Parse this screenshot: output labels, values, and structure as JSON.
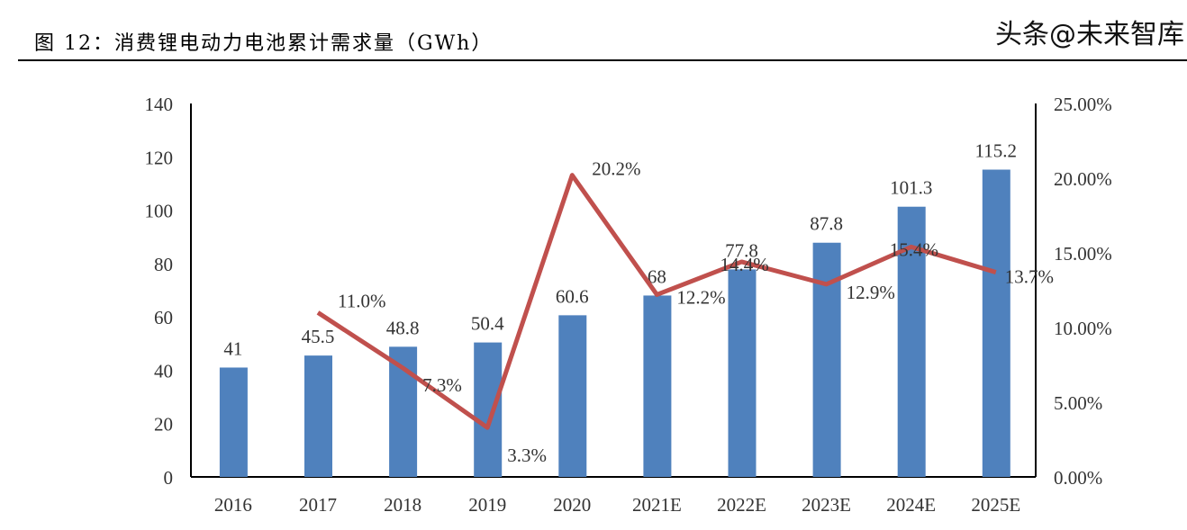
{
  "title": "图 12：消费锂电动力电池累计需求量（GWh）",
  "watermark": "头条@未来智库",
  "chart_data": {
    "type": "bar+line",
    "categories": [
      "2016",
      "2017",
      "2018",
      "2019",
      "2020",
      "2021E",
      "2022E",
      "2023E",
      "2024E",
      "2025E"
    ],
    "series": [
      {
        "type": "bar",
        "axis": "left",
        "color": "#4F81BD",
        "values": [
          41,
          45.5,
          48.8,
          50.4,
          60.6,
          68,
          77.8,
          87.8,
          101.3,
          115.2
        ],
        "labels": [
          "41",
          "45.5",
          "48.8",
          "50.4",
          "60.6",
          "68",
          "77.8",
          "87.8",
          "101.3",
          "115.2"
        ]
      },
      {
        "type": "line",
        "axis": "right",
        "color": "#C0504D",
        "values": [
          null,
          11.0,
          7.3,
          3.3,
          20.2,
          12.2,
          14.4,
          12.9,
          15.4,
          13.7
        ],
        "labels": [
          "",
          "11.0%",
          "7.3%",
          "3.3%",
          "20.2%",
          "12.2%",
          "14.4%",
          "12.9%",
          "15.4%",
          "13.7%"
        ]
      }
    ],
    "y_left": {
      "range": [
        0,
        140
      ],
      "ticks": [
        "0",
        "20",
        "40",
        "60",
        "80",
        "100",
        "120",
        "140"
      ]
    },
    "y_right": {
      "range": [
        0,
        25
      ],
      "ticks": [
        "0.00%",
        "5.00%",
        "10.00%",
        "15.00%",
        "20.00%",
        "25.00%"
      ]
    },
    "grid": false,
    "legend": "none"
  }
}
